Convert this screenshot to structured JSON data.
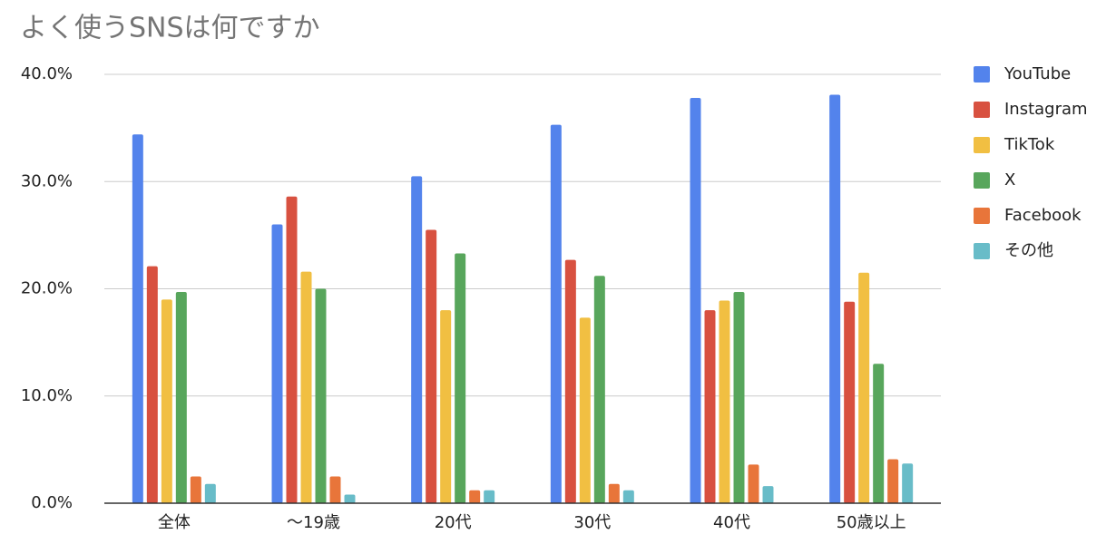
{
  "chart_data": {
    "type": "bar",
    "title": "よく使うSNSは何ですか",
    "categories": [
      "全体",
      "〜19歳",
      "20代",
      "30代",
      "40代",
      "50歳以上"
    ],
    "series": [
      {
        "name": "YouTube",
        "color": "#5383ec",
        "values": [
          34.4,
          26.0,
          30.5,
          35.3,
          37.8,
          38.1
        ]
      },
      {
        "name": "Instagram",
        "color": "#d85140",
        "values": [
          22.1,
          28.6,
          25.5,
          22.7,
          18.0,
          18.8
        ]
      },
      {
        "name": "TikTok",
        "color": "#f1bf42",
        "values": [
          19.0,
          21.6,
          18.0,
          17.3,
          18.9,
          21.5
        ]
      },
      {
        "name": "X",
        "color": "#58a65c",
        "values": [
          19.7,
          20.0,
          23.3,
          21.2,
          19.7,
          13.0
        ]
      },
      {
        "name": "Facebook",
        "color": "#e8753a",
        "values": [
          2.5,
          2.5,
          1.2,
          1.8,
          3.6,
          4.1
        ]
      },
      {
        "name": "その他",
        "color": "#68bcc8",
        "values": [
          1.8,
          0.8,
          1.2,
          1.2,
          1.6,
          3.7
        ]
      }
    ],
    "ylim": [
      0,
      40
    ],
    "yticks": [
      {
        "value": 0,
        "label": "0.0%"
      },
      {
        "value": 10,
        "label": "10.0%"
      },
      {
        "value": 20,
        "label": "20.0%"
      },
      {
        "value": 30,
        "label": "30.0%"
      },
      {
        "value": 40,
        "label": "40.0%"
      }
    ],
    "grid": true,
    "legend": "right"
  }
}
